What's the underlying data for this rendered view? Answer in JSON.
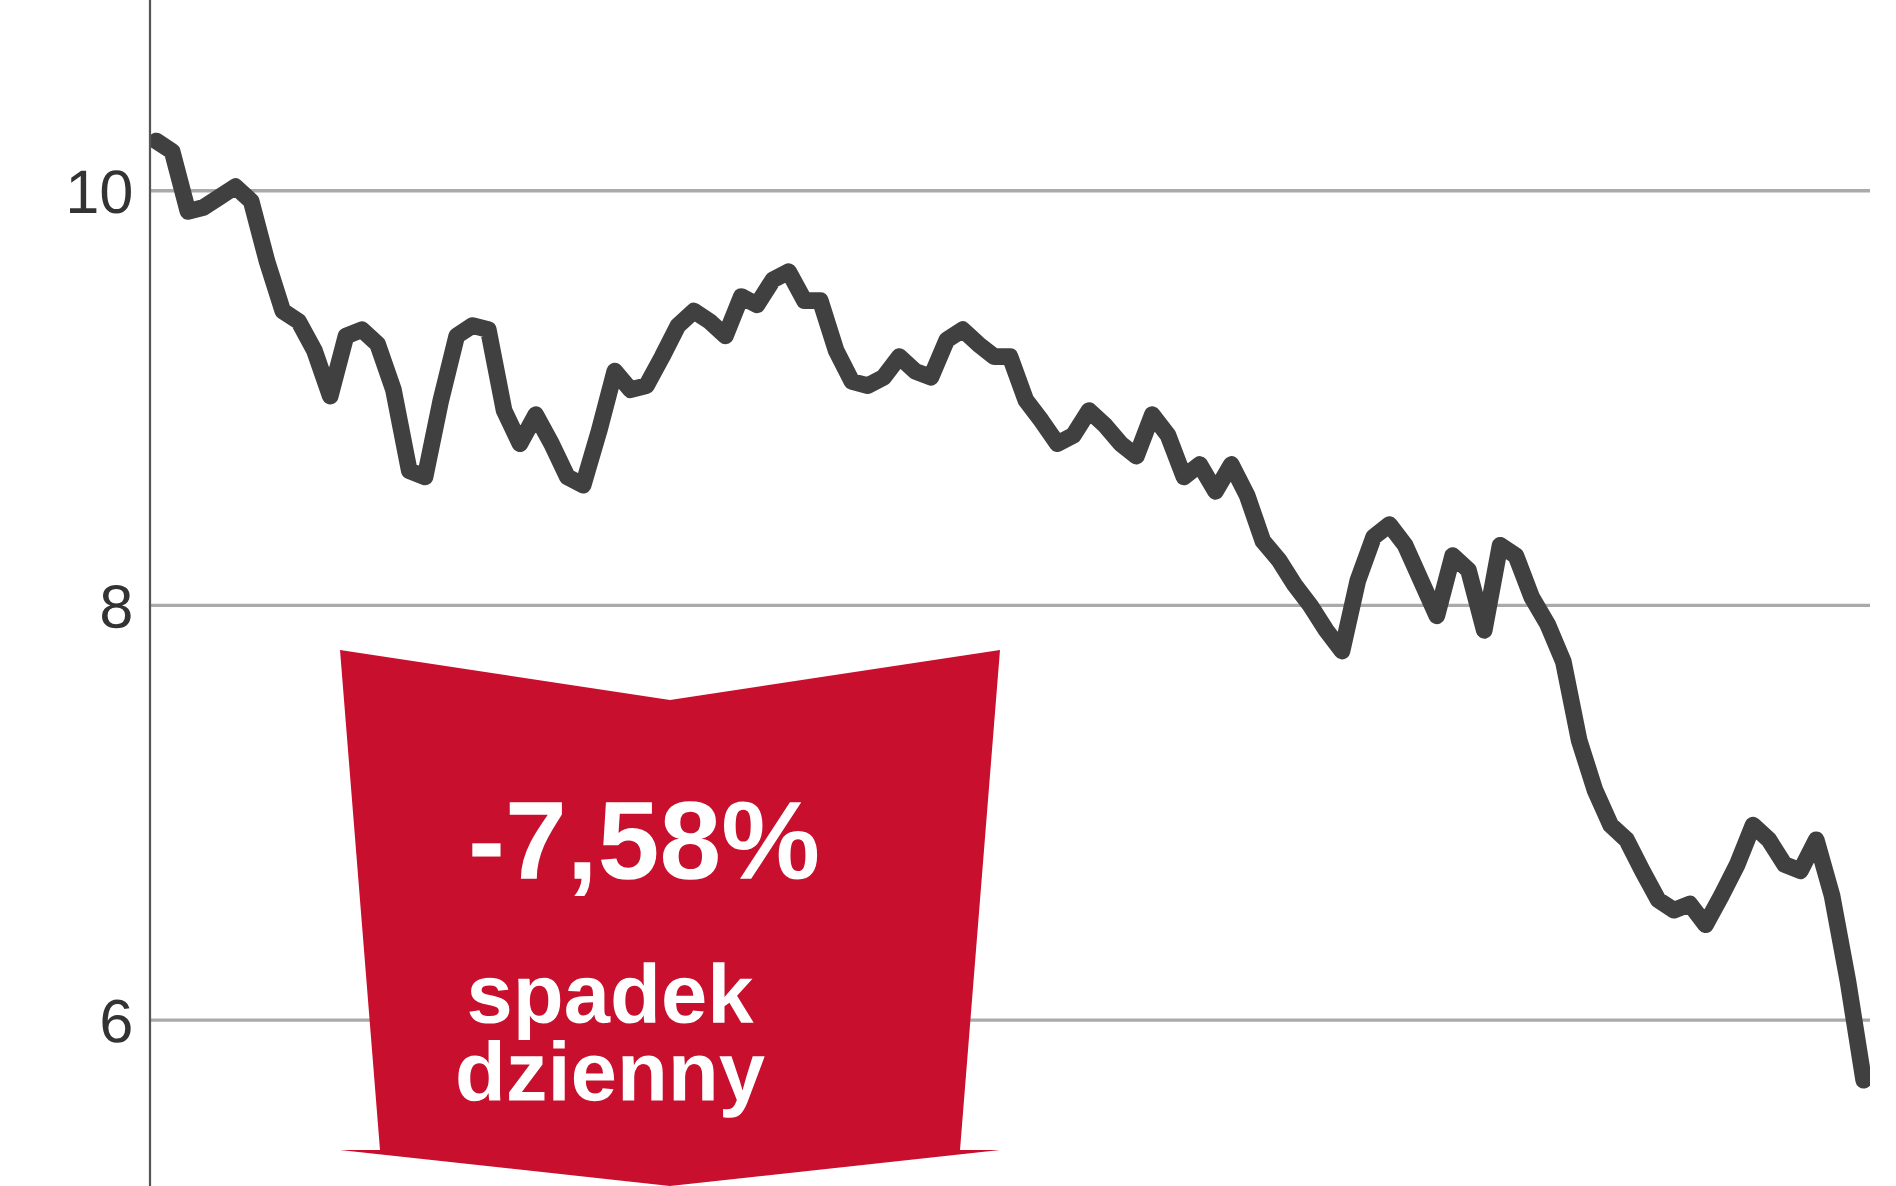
{
  "chart_data": {
    "type": "line",
    "categories": [
      null,
      null,
      null,
      null,
      null,
      null,
      null,
      null,
      null,
      null,
      null,
      null,
      null,
      null,
      null,
      null,
      null,
      null,
      null,
      null,
      null,
      null,
      null,
      null,
      null,
      null,
      null,
      null,
      null,
      null,
      null,
      null,
      null,
      null,
      null,
      null,
      null,
      null,
      null,
      null,
      null,
      null,
      null,
      null,
      null,
      null,
      null,
      null,
      null,
      null,
      null,
      null,
      null,
      null,
      null,
      null,
      null,
      null,
      null,
      null,
      null,
      null,
      null,
      null,
      null,
      null,
      null,
      null,
      null,
      null,
      null,
      null,
      null,
      null,
      null,
      null,
      null,
      null,
      null,
      null,
      null,
      null,
      null,
      null,
      null,
      null,
      null,
      null,
      null,
      null,
      null,
      null,
      null,
      null,
      null,
      null,
      null,
      null,
      null,
      null,
      null,
      null,
      null,
      null,
      null,
      null,
      null,
      null,
      null
    ],
    "series": [
      {
        "color": "#404040",
        "values": [
          10.24,
          10.19,
          9.9,
          9.92,
          9.97,
          10.02,
          9.95,
          9.66,
          9.42,
          9.37,
          9.23,
          9.01,
          9.3,
          9.33,
          9.26,
          9.04,
          8.65,
          8.62,
          8.99,
          9.3,
          9.35,
          9.33,
          8.94,
          8.78,
          8.92,
          8.78,
          8.62,
          8.58,
          8.84,
          9.13,
          9.04,
          9.06,
          9.2,
          9.35,
          9.42,
          9.37,
          9.3,
          9.49,
          9.45,
          9.57,
          9.61,
          9.47,
          9.47,
          9.23,
          9.08,
          9.06,
          9.1,
          9.2,
          9.13,
          9.1,
          9.28,
          9.33,
          9.26,
          9.2,
          9.2,
          8.99,
          8.89,
          8.78,
          8.82,
          8.94,
          8.87,
          8.78,
          8.72,
          8.92,
          8.82,
          8.62,
          8.68,
          8.55,
          8.68,
          8.53,
          8.31,
          8.22,
          8.1,
          8.0,
          7.88,
          7.78,
          8.12,
          8.33,
          8.39,
          8.29,
          8.12,
          7.95,
          8.24,
          8.17,
          7.88,
          8.29,
          8.24,
          8.04,
          7.91,
          7.73,
          7.35,
          7.11,
          6.94,
          6.87,
          6.72,
          6.58,
          6.53,
          6.56,
          6.46,
          6.6,
          6.75,
          6.94,
          6.87,
          6.75,
          6.72,
          6.87,
          6.6,
          6.19,
          5.71
        ]
      }
    ],
    "ylim": [
      5.2,
      10.92
    ],
    "yticks": [
      6,
      8,
      10
    ],
    "grid": "y",
    "tick_labels": "y",
    "annotations": [
      "-7,58%",
      "spadek dzienny"
    ]
  }
}
